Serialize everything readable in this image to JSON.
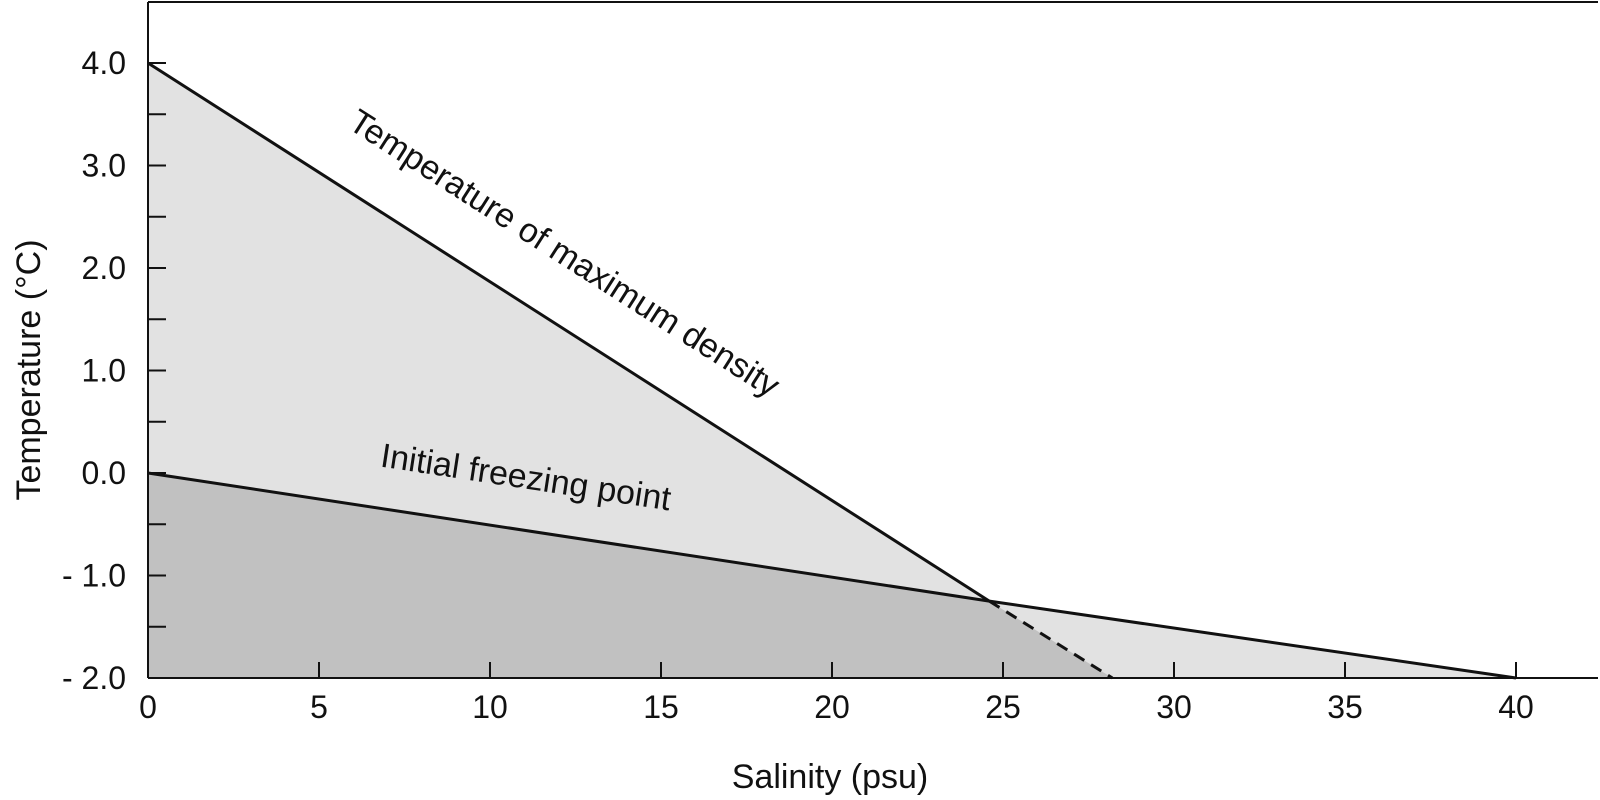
{
  "chart_data": {
    "type": "line",
    "title": "",
    "xlabel": "Salinity (psu)",
    "ylabel": "Temperature (°C)",
    "xlim": [
      0,
      42
    ],
    "ylim": [
      -2.0,
      4.6
    ],
    "grid": false,
    "x_ticks": [
      0,
      5,
      10,
      15,
      20,
      25,
      30,
      35,
      40
    ],
    "x_tick_labels": [
      "0",
      "5",
      "10",
      "15",
      "20",
      "25",
      "30",
      "35",
      "40"
    ],
    "y_ticks": [
      -2.0,
      -1.0,
      0.0,
      1.0,
      2.0,
      3.0,
      4.0
    ],
    "y_tick_labels": [
      "- 2.0",
      "- 1.0",
      "0.0",
      "1.0",
      "2.0",
      "3.0",
      "4.0"
    ],
    "y_minor_ticks": [
      -1.5,
      -0.5,
      0.5,
      1.5,
      2.5,
      3.5
    ],
    "series": [
      {
        "name": "Temperature of maximum density",
        "x": [
          0,
          24.6
        ],
        "y": [
          4.0,
          -1.25
        ],
        "style": "solid",
        "dashed_extension": {
          "x": [
            24.6,
            28.2
          ],
          "y": [
            -1.25,
            -2.0
          ]
        }
      },
      {
        "name": "Initial freezing point",
        "x": [
          0,
          24.6,
          40
        ],
        "y": [
          0.0,
          -1.25,
          -2.0
        ],
        "style": "solid"
      }
    ],
    "annotations": [
      {
        "text": "Temperature of maximum density",
        "x": 12.0,
        "y": 2.05
      },
      {
        "text": "Initial freezing point",
        "x": 11.0,
        "y": -0.15
      }
    ],
    "colors": {
      "light_fill": "#e2e2e2",
      "dark_fill": "#c1c1c1",
      "line": "#111111"
    }
  }
}
